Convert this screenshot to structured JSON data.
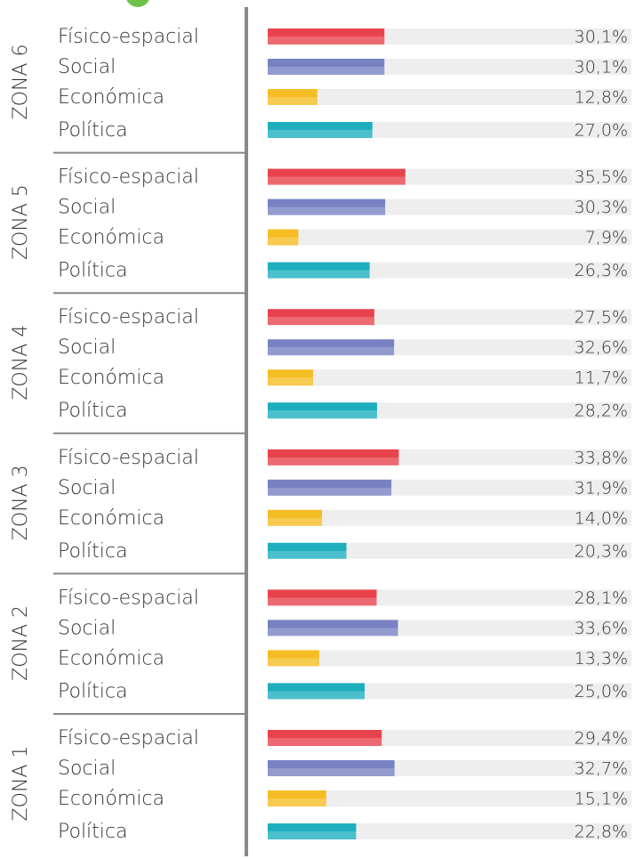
{
  "chart_data": {
    "type": "bar",
    "categories": [
      "Físico-espacial",
      "Social",
      "Económica",
      "Política"
    ],
    "colors": [
      "#e8434d",
      "#7882c2",
      "#f5bd24",
      "#1eafbf"
    ],
    "groups": [
      {
        "name": "ZONA 6",
        "values": [
          30.1,
          30.1,
          12.8,
          27.0
        ],
        "value_labels": [
          "30,1%",
          "30,1%",
          "12,8%",
          "27,0%"
        ]
      },
      {
        "name": "ZONA 5",
        "values": [
          35.5,
          30.3,
          7.9,
          26.3
        ],
        "value_labels": [
          "35,5%",
          "30,3%",
          "7,9%",
          "26,3%"
        ]
      },
      {
        "name": "ZONA 4",
        "values": [
          27.5,
          32.6,
          11.7,
          28.2
        ],
        "value_labels": [
          "27,5%",
          "32,6%",
          "11,7%",
          "28,2%"
        ]
      },
      {
        "name": "ZONA 3",
        "values": [
          33.8,
          31.9,
          14.0,
          20.3
        ],
        "value_labels": [
          "33,8%",
          "31,9%",
          "14,0%",
          "20,3%"
        ]
      },
      {
        "name": "ZONA 2",
        "values": [
          28.1,
          33.6,
          13.3,
          25.0
        ],
        "value_labels": [
          "28,1%",
          "33,6%",
          "13,3%",
          "25,0%"
        ]
      },
      {
        "name": "ZONA 1",
        "values": [
          29.4,
          32.7,
          15.1,
          22.8
        ],
        "value_labels": [
          "29,4%",
          "32,7%",
          "15,1%",
          "22,8%"
        ]
      }
    ]
  }
}
